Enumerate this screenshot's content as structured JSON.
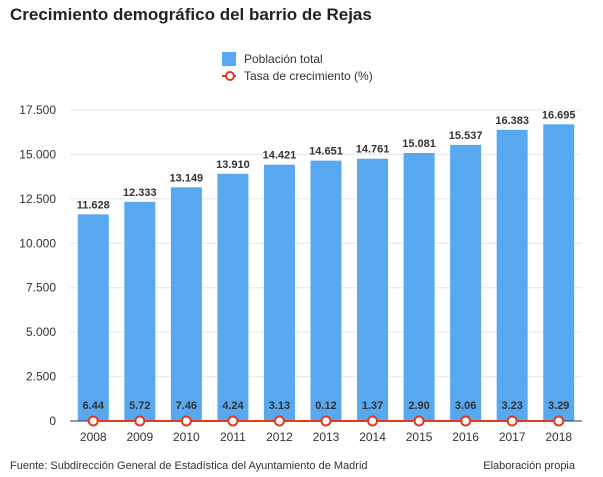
{
  "title": "Crecimiento demográfico del barrio de Rejas",
  "footer": {
    "source": "Fuente: Subdirección General de Estadística del Ayuntamiento de Madrid",
    "credit": "Elaboración propia"
  },
  "colors": {
    "bar": "#58a8f0",
    "line": "#e03a1e",
    "grid": "#e6e6e6",
    "axis": "#333333"
  },
  "chart_data": {
    "type": "bar",
    "title": "Crecimiento demográfico del barrio de Rejas",
    "categories": [
      "2008",
      "2009",
      "2010",
      "2011",
      "2012",
      "2013",
      "2014",
      "2015",
      "2016",
      "2017",
      "2018"
    ],
    "series": [
      {
        "name": "Población total",
        "type": "bar",
        "values": [
          11628,
          12333,
          13149,
          13910,
          14421,
          14651,
          14761,
          15081,
          15537,
          16383,
          16695
        ],
        "labels": [
          "11.628",
          "12.333",
          "13.149",
          "13.910",
          "14.421",
          "14.651",
          "14.761",
          "15.081",
          "15.537",
          "16.383",
          "16.695"
        ]
      },
      {
        "name": "Tasa de crecimiento (%)",
        "type": "line",
        "values": [
          6.44,
          5.72,
          7.46,
          4.24,
          3.13,
          0.12,
          1.37,
          2.9,
          3.06,
          3.23,
          3.29
        ],
        "labels": [
          "6.44",
          "5.72",
          "7.46",
          "4.24",
          "3.13",
          "0.12",
          "1.37",
          "2.90",
          "3.06",
          "3.23",
          "3.29"
        ]
      }
    ],
    "yticks": [
      0,
      2500,
      5000,
      7500,
      10000,
      12500,
      15000,
      17500
    ],
    "ytick_labels": [
      "0",
      "2.500",
      "5.000",
      "7.500",
      "10.000",
      "12.500",
      "15.000",
      "17.500"
    ],
    "ylim": [
      0,
      17500
    ],
    "grid": true,
    "legend": "top-center"
  }
}
